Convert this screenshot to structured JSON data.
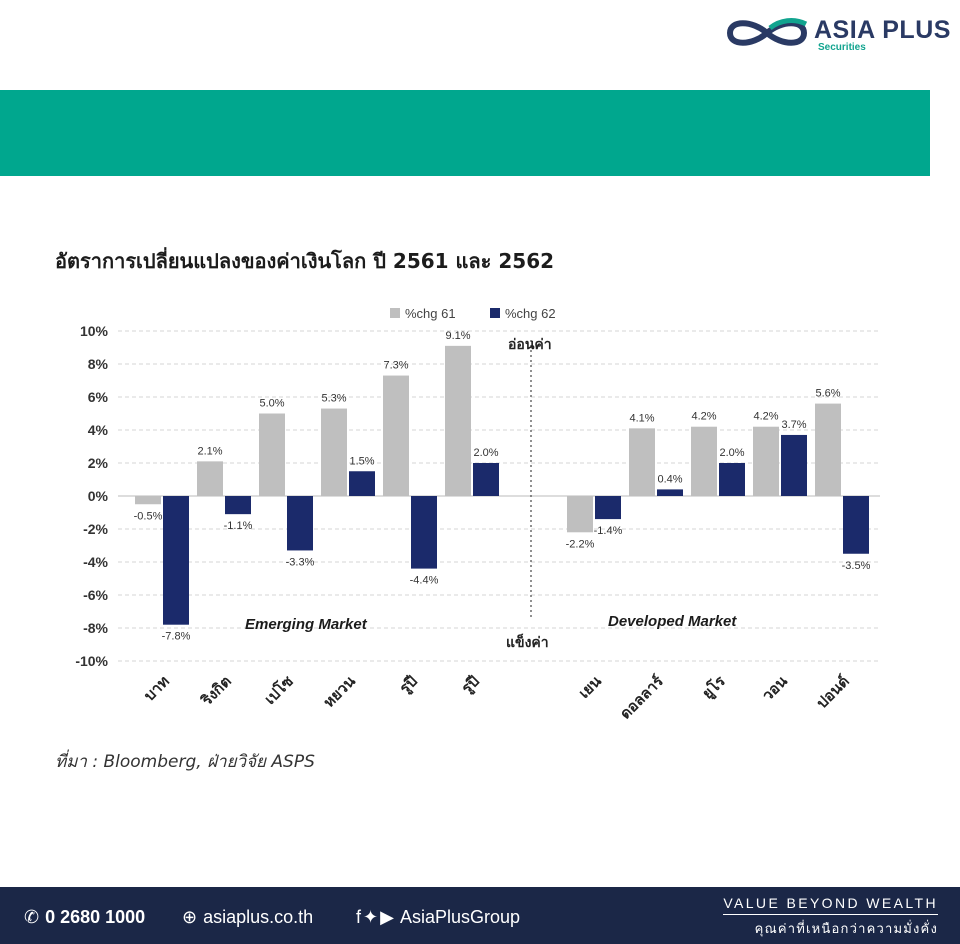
{
  "brand": {
    "name": "ASIA PLUS",
    "sub": "Securities"
  },
  "title": "อัตราการเปลี่ยนแปลงของค่าเงินโลก ปี 2561 และ 2562",
  "chart_data": {
    "type": "bar",
    "categories": [
      "บาท",
      "ริงกิต",
      "เปโซ",
      "หยวน",
      "รูปี",
      "รูปี",
      "เยน",
      "ดอลลาร์",
      "ยูโร",
      "วอน",
      "ปอนด์"
    ],
    "series": [
      {
        "name": "%chg 61",
        "color": "#bfbfbf",
        "values": [
          -0.5,
          2.1,
          5.0,
          5.3,
          7.3,
          9.1,
          -2.2,
          4.1,
          4.2,
          4.2,
          5.6
        ],
        "labels": [
          "-0.5%",
          "2.1%",
          "5.0%",
          "5.3%",
          "7.3%",
          "9.1%",
          "-2.2%",
          "4.1%",
          "4.2%",
          "4.2%",
          "5.6%"
        ]
      },
      {
        "name": "%chg 62",
        "color": "#1b2a6b",
        "values": [
          -7.8,
          -1.1,
          -3.3,
          1.5,
          -4.4,
          2.0,
          -1.4,
          0.4,
          2.0,
          3.7,
          -3.5
        ],
        "labels": [
          "-7.8%",
          "-1.1%",
          "-3.3%",
          "1.5%",
          "-4.4%",
          "2.0%",
          "-1.4%",
          "0.4%",
          "2.0%",
          "3.7%",
          "-3.5%"
        ]
      }
    ],
    "ylim": [
      -10,
      10
    ],
    "yticks": [
      "-10%",
      "-8%",
      "-6%",
      "-4%",
      "-2%",
      "0%",
      "2%",
      "4%",
      "6%",
      "8%",
      "10%"
    ],
    "grid": true,
    "legend_position": "top",
    "annotations": {
      "weaker": "อ่อนค่า",
      "stronger": "แข็งค่า",
      "emerging": "Emerging Market",
      "developed": "Developed Market"
    }
  },
  "source": "ที่มา : Bloomberg, ฝ่ายวิจัย ASPS",
  "footer": {
    "phone": "0 2680 1000",
    "website": "asiaplus.co.th",
    "social": "AsiaPlusGroup",
    "tagline_en": "VALUE BEYOND WEALTH",
    "tagline_th": "คุณค่าที่เหนือกว่าความมั่งคั่ง",
    "icons": [
      "phone-icon",
      "globe-icon",
      "facebook-icon",
      "twitter-icon",
      "youtube-icon"
    ]
  }
}
